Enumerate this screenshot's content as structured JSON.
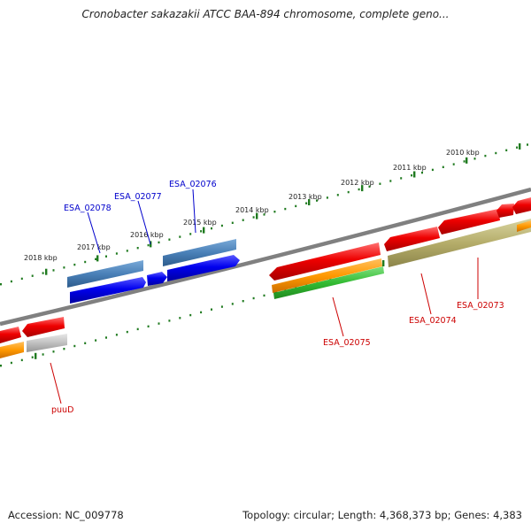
{
  "title": "Cronobacter sakazakii ATCC BAA-894 chromosome, complete geno...",
  "ruler": {
    "labels": [
      "2010 kbp",
      "2011 kbp",
      "2012 kbp",
      "2013 kbp",
      "2014 kbp",
      "2015 kbp",
      "2016 kbp",
      "2017 kbp",
      "2018 kbp"
    ],
    "color": "#1f7a1f"
  },
  "genes": {
    "labels": [
      "ESA_02078",
      "ESA_02077",
      "ESA_02076",
      "ESA_02075",
      "ESA_02074",
      "ESA_02073",
      "puuD"
    ],
    "forward_color": "#0000cc",
    "reverse_color": "#cc0000"
  },
  "footer": {
    "accession": "Accession: NC_009778",
    "summary": "Topology: circular; Length: 4,368,373 bp; Genes: 4,383"
  }
}
